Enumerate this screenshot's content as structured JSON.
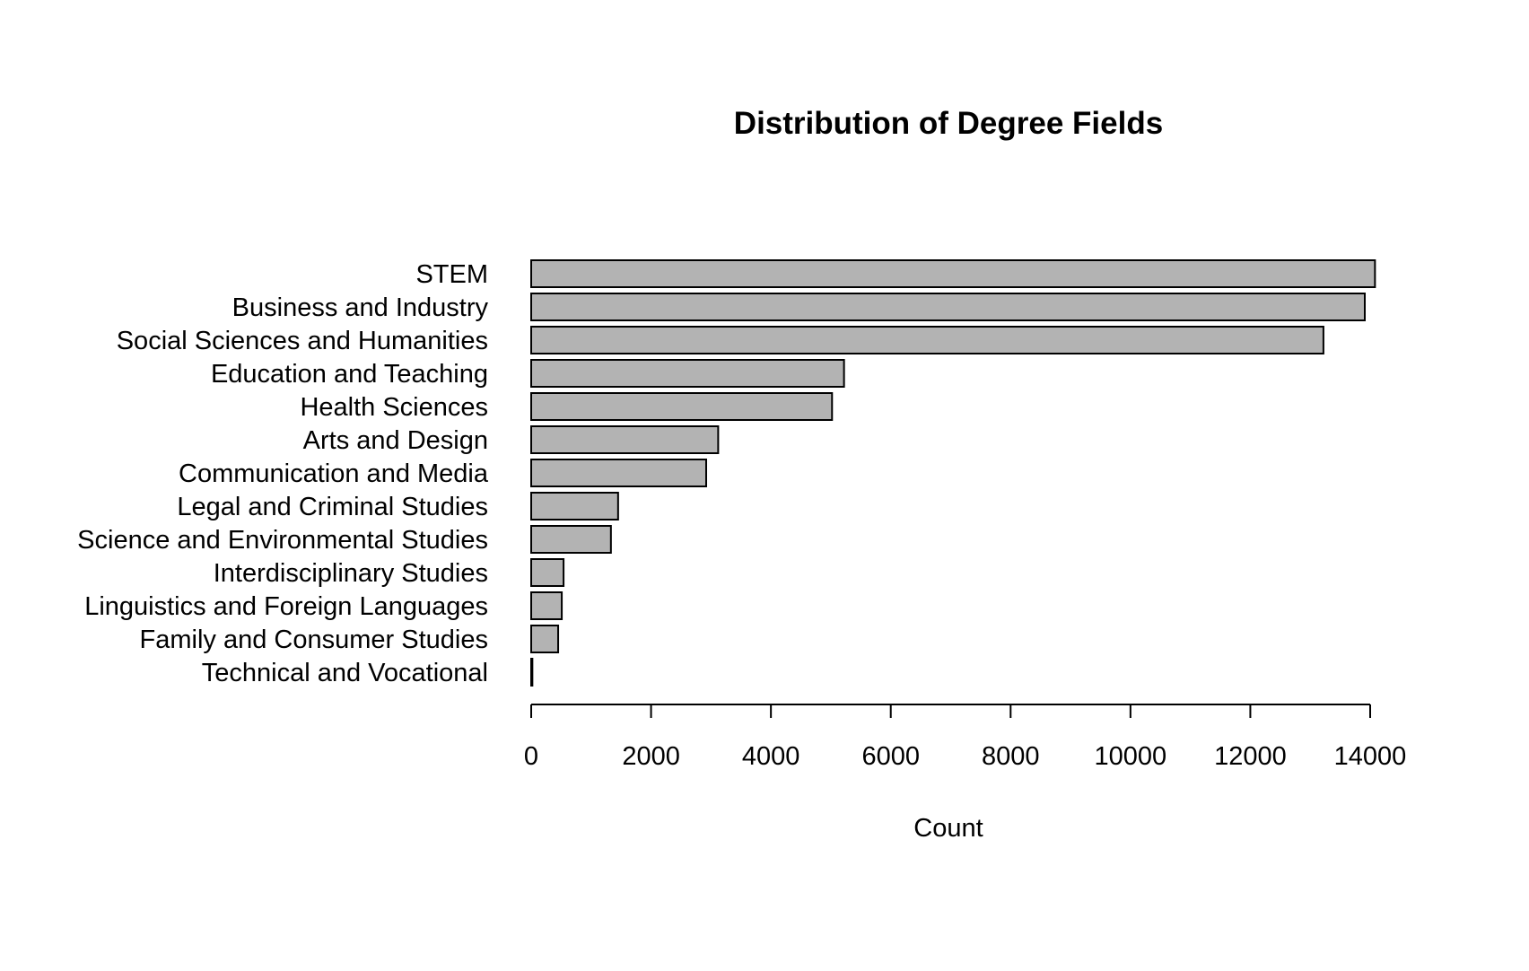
{
  "chart_data": {
    "type": "bar",
    "orientation": "horizontal",
    "title": "Distribution of Degree Fields",
    "xlabel": "Count",
    "ylabel": "",
    "xlim": [
      0,
      14000
    ],
    "grid": false,
    "categories": [
      "STEM",
      "Business and Industry",
      "Social Sciences and Humanities",
      "Education and Teaching",
      "Health Sciences",
      "Arts and Design",
      "Communication and Media",
      "Legal and Criminal Studies",
      "Science and Environmental Studies",
      "Interdisciplinary Studies",
      "Linguistics and Foreign Languages",
      "Family and Consumer Studies",
      "Technical and Vocational"
    ],
    "values": [
      14080,
      13910,
      13220,
      5220,
      5020,
      3120,
      2920,
      1450,
      1330,
      540,
      510,
      450,
      20
    ],
    "xticks": [
      "0",
      "2000",
      "4000",
      "6000",
      "8000",
      "10000",
      "12000",
      "14000"
    ],
    "bar_color": "#b3b3b3",
    "edge_color": "#000000"
  }
}
